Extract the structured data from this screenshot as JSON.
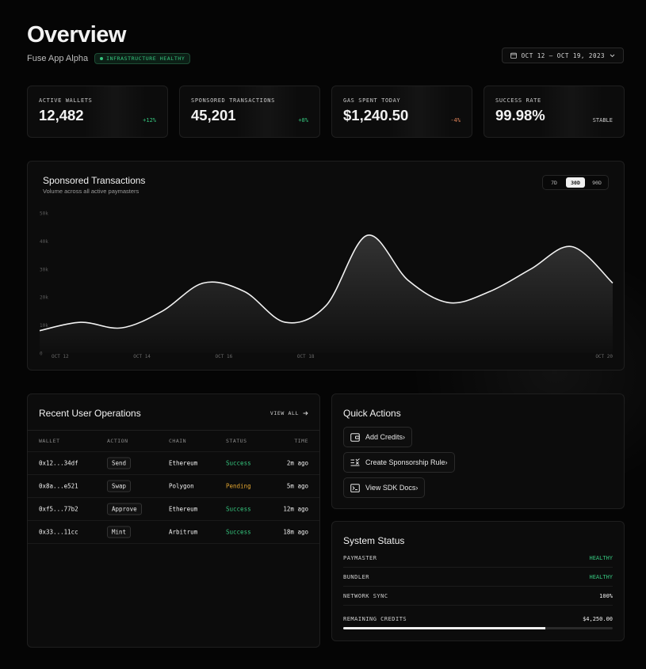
{
  "header": {
    "title": "Overview",
    "app_name": "Fuse App Alpha",
    "status_badge": "INFRASTRUCTURE HEALTHY",
    "date_range": "OCT 12 — OCT 19, 2023"
  },
  "stats": [
    {
      "label": "ACTIVE WALLETS",
      "value": "12,482",
      "delta": "+12%",
      "trend": "pos"
    },
    {
      "label": "SPONSORED TRANSACTIONS",
      "value": "45,201",
      "delta": "+8%",
      "trend": "pos"
    },
    {
      "label": "GAS SPENT TODAY",
      "value": "$1,240.50",
      "delta": "-4%",
      "trend": "neg"
    },
    {
      "label": "SUCCESS RATE",
      "value": "99.98%",
      "delta": "STABLE",
      "trend": "neu"
    }
  ],
  "chart": {
    "title": "Sponsored Transactions",
    "subtitle": "Volume across all active paymasters",
    "ranges": [
      "7D",
      "30D",
      "90D"
    ],
    "active_range": "30D"
  },
  "chart_data": {
    "type": "area",
    "x": [
      0,
      1,
      2,
      3,
      4,
      5,
      6,
      7,
      8,
      9,
      10,
      11,
      12,
      13,
      14
    ],
    "xtick_positions": [
      0.5,
      2.5,
      4.5,
      6.5,
      8.5
    ],
    "xtick_labels": [
      "OCT 12",
      "OCT 14",
      "OCT 16",
      "OCT 18",
      "OCT 20"
    ],
    "series": [
      {
        "values": [
          8,
          11,
          9,
          15,
          25,
          22,
          11,
          17,
          42,
          26,
          18,
          22,
          30,
          38,
          25
        ]
      }
    ],
    "ylim": [
      0,
      50
    ],
    "yticks": [
      0,
      10,
      20,
      30,
      40,
      50
    ],
    "ytick_labels": [
      "0",
      "10k",
      "20k",
      "30k",
      "40k",
      "50k"
    ],
    "grid": false
  },
  "operations": {
    "title": "Recent User Operations",
    "view_all": "VIEW ALL",
    "columns": [
      "WALLET",
      "ACTION",
      "CHAIN",
      "STATUS",
      "TIME"
    ],
    "rows": [
      {
        "wallet": "0x12...34df",
        "action": "Send",
        "chain": "Ethereum",
        "status": "Success",
        "time": "2m ago"
      },
      {
        "wallet": "0x8a...e521",
        "action": "Swap",
        "chain": "Polygon",
        "status": "Pending",
        "time": "5m ago"
      },
      {
        "wallet": "0xf5...77b2",
        "action": "Approve",
        "chain": "Ethereum",
        "status": "Success",
        "time": "12m ago"
      },
      {
        "wallet": "0x33...11cc",
        "action": "Mint",
        "chain": "Arbitrum",
        "status": "Success",
        "time": "18m ago"
      }
    ]
  },
  "quick_actions": {
    "title": "Quick Actions",
    "items": [
      {
        "label": "Add Credits›",
        "icon": "wallet-icon"
      },
      {
        "label": "Create Sponsorship Rule›",
        "icon": "rule-icon"
      },
      {
        "label": "View SDK Docs›",
        "icon": "terminal-icon"
      }
    ]
  },
  "system_status": {
    "title": "System Status",
    "rows": [
      {
        "key": "PAYMASTER",
        "value": "HEALTHY"
      },
      {
        "key": "BUNDLER",
        "value": "HEALTHY"
      },
      {
        "key": "NETWORK SYNC",
        "value": "100%"
      },
      {
        "key": "REMAINING CREDITS",
        "value": "$4,250.00"
      }
    ],
    "credits_fraction": 0.75
  }
}
